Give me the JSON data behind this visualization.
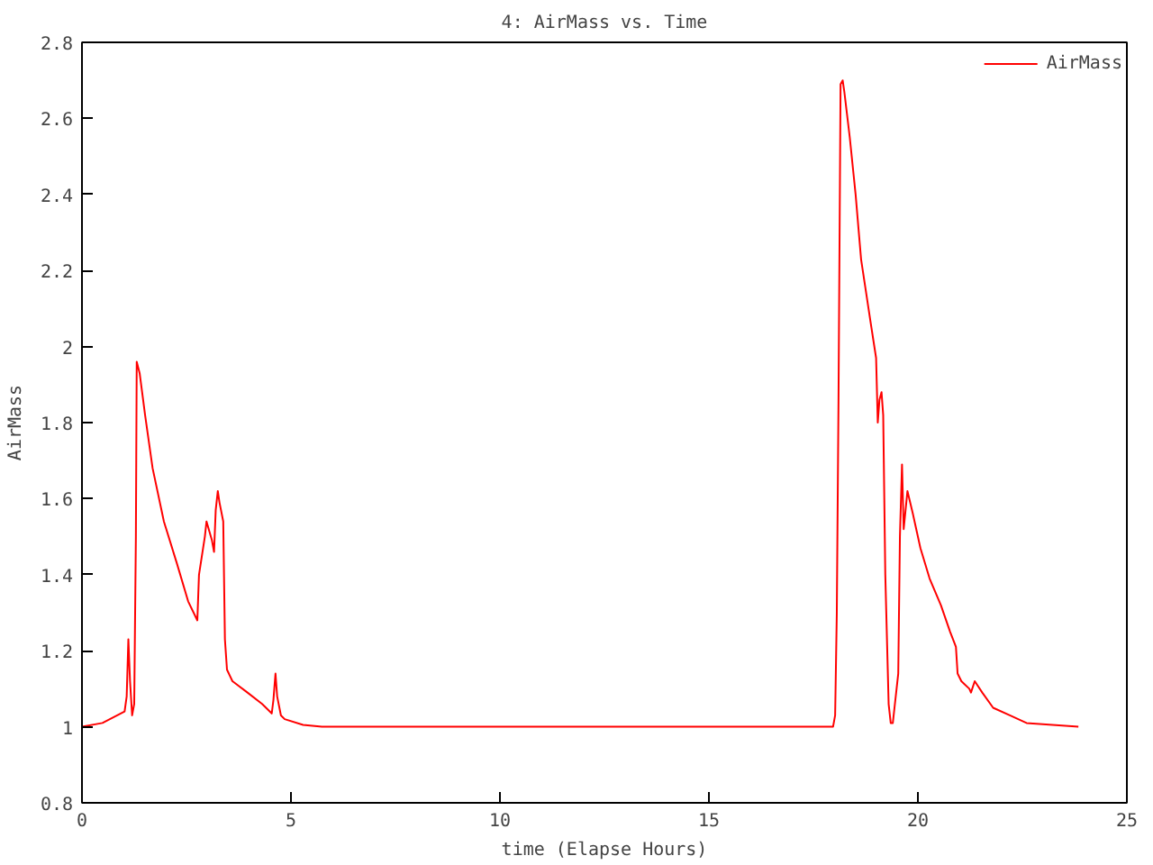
{
  "chart_data": {
    "type": "line",
    "title": "4: AirMass vs. Time",
    "xlabel": "time (Elapse Hours)",
    "ylabel": "AirMass",
    "xlim": [
      0,
      25
    ],
    "ylim": [
      0.8,
      2.8
    ],
    "xticks": [
      0,
      5,
      10,
      15,
      20,
      25
    ],
    "yticks": [
      0.8,
      1,
      1.2,
      1.4,
      1.6,
      1.8,
      2,
      2.2,
      2.4,
      2.6,
      2.8
    ],
    "grid": false,
    "legend": "top right",
    "marker": "none",
    "line_style": "solid",
    "series": [
      {
        "name": "AirMass",
        "color": "#ff0000",
        "x": [
          0,
          0.49,
          1.02,
          1.07,
          1.11,
          1.15,
          1.2,
          1.25,
          1.29,
          1.31,
          1.38,
          1.51,
          1.69,
          1.96,
          2.27,
          2.54,
          2.76,
          2.8,
          2.94,
          2.98,
          3.11,
          3.16,
          3.2,
          3.25,
          3.29,
          3.38,
          3.42,
          3.47,
          3.6,
          3.96,
          4.31,
          4.54,
          4.58,
          4.63,
          4.67,
          4.76,
          4.85,
          5.29,
          5.74,
          17.97,
          18.02,
          18.06,
          18.1,
          18.15,
          18.2,
          18.24,
          18.37,
          18.51,
          18.64,
          18.86,
          19.0,
          19.04,
          19.08,
          19.13,
          19.17,
          19.22,
          19.3,
          19.35,
          19.4,
          19.44,
          19.53,
          19.57,
          19.62,
          19.66,
          19.75,
          19.88,
          20.06,
          20.28,
          20.55,
          20.77,
          20.91,
          20.95,
          21.04,
          21.23,
          21.27,
          21.36,
          21.54,
          21.8,
          22.2,
          22.6,
          23.84
        ],
        "values": [
          1.0,
          1.01,
          1.04,
          1.08,
          1.23,
          1.12,
          1.03,
          1.06,
          1.5,
          1.96,
          1.93,
          1.82,
          1.68,
          1.54,
          1.43,
          1.33,
          1.28,
          1.4,
          1.5,
          1.54,
          1.49,
          1.46,
          1.57,
          1.62,
          1.59,
          1.54,
          1.23,
          1.15,
          1.12,
          1.09,
          1.06,
          1.035,
          1.07,
          1.14,
          1.08,
          1.03,
          1.02,
          1.005,
          1.0,
          1.0,
          1.03,
          1.3,
          1.85,
          2.69,
          2.7,
          2.67,
          2.55,
          2.4,
          2.23,
          2.07,
          1.97,
          1.8,
          1.86,
          1.88,
          1.82,
          1.4,
          1.06,
          1.01,
          1.01,
          1.05,
          1.14,
          1.5,
          1.69,
          1.52,
          1.62,
          1.56,
          1.47,
          1.39,
          1.32,
          1.25,
          1.21,
          1.14,
          1.12,
          1.1,
          1.09,
          1.12,
          1.09,
          1.05,
          1.03,
          1.01,
          1.0
        ]
      }
    ]
  }
}
